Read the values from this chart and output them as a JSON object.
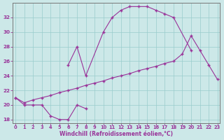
{
  "xlabel": "Windchill (Refroidissement éolien,°C)",
  "background_color": "#cce8e8",
  "grid_color": "#99cccc",
  "line_color": "#993399",
  "xlim": [
    -0.3,
    23.3
  ],
  "ylim": [
    17.5,
    34.0
  ],
  "xticks": [
    0,
    1,
    2,
    3,
    4,
    5,
    6,
    7,
    8,
    9,
    10,
    11,
    12,
    13,
    14,
    15,
    16,
    17,
    18,
    19,
    20,
    21,
    22,
    23
  ],
  "yticks": [
    18,
    20,
    22,
    24,
    26,
    28,
    30,
    32
  ],
  "curve1_x": [
    0,
    1,
    2,
    3,
    4,
    5,
    6,
    7,
    8
  ],
  "curve1_y": [
    21.0,
    20.0,
    20.0,
    20.0,
    18.5,
    18.0,
    18.0,
    20.0,
    19.5
  ],
  "curve2_x": [
    0,
    1,
    2,
    3,
    4,
    5,
    6,
    7,
    8,
    9,
    10,
    11,
    12,
    13,
    14,
    15,
    16,
    17,
    18,
    19,
    20,
    21,
    22,
    23
  ],
  "curve2_y": [
    21.0,
    20.3,
    20.7,
    21.0,
    21.3,
    21.7,
    22.0,
    22.3,
    22.7,
    23.0,
    23.3,
    23.7,
    24.0,
    24.3,
    24.7,
    25.0,
    25.3,
    25.7,
    26.0,
    27.0,
    29.5,
    27.5,
    25.5,
    23.5
  ],
  "curve3_x": [
    6,
    7,
    8,
    10,
    11,
    12,
    13,
    14,
    15,
    16,
    17,
    18,
    20
  ],
  "curve3_y": [
    25.5,
    28.0,
    24.0,
    30.0,
    32.0,
    33.0,
    33.5,
    33.5,
    33.5,
    33.0,
    32.5,
    32.0,
    27.5
  ]
}
